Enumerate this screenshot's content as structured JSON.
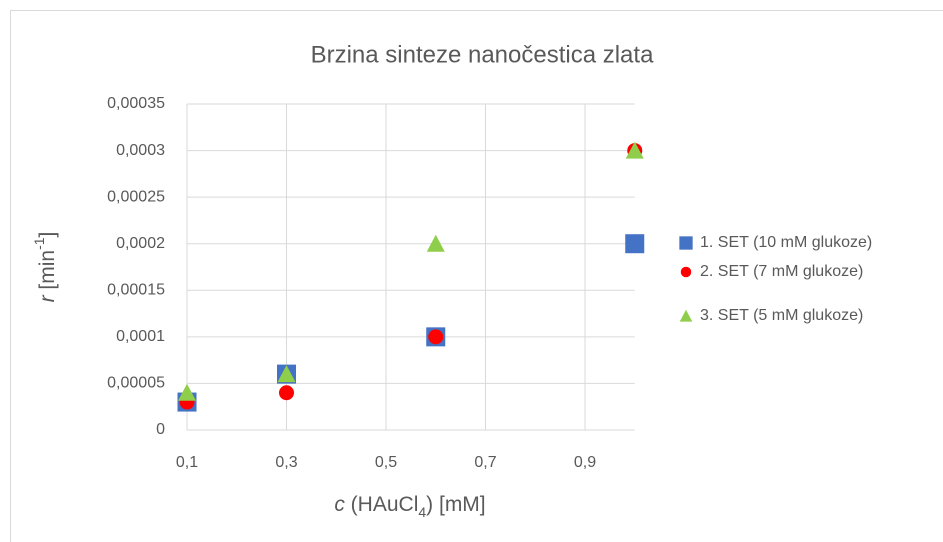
{
  "chart_data": {
    "type": "scatter",
    "title": "Brzina sinteze nanočestica zlata",
    "x_label": [
      "c",
      " (HAuCl",
      "4",
      ") [mM]"
    ],
    "y_label": [
      "r",
      " [min",
      "-1",
      "]"
    ],
    "x": [
      0.1,
      0.3,
      0.6,
      1.0
    ],
    "series": [
      {
        "name": "1. SET (10 mM glukoze)",
        "color": "#4472c4",
        "marker": "square",
        "values": [
          3e-05,
          6e-05,
          0.0001,
          0.0002
        ]
      },
      {
        "name": "2. SET (7 mM glukoze)",
        "color": "#ff0000",
        "marker": "circle",
        "values": [
          3e-05,
          4e-05,
          0.0001,
          0.0003
        ]
      },
      {
        "name": "3. SET (5 mM glukoze)",
        "color": "#8fce4a",
        "marker": "triangle",
        "values": [
          4e-05,
          6e-05,
          0.0002,
          0.0003
        ]
      }
    ],
    "xlim": [
      0.1,
      1.0
    ],
    "xticks": [
      {
        "value": 0.1,
        "label": "0,1"
      },
      {
        "value": 0.3,
        "label": "0,3"
      },
      {
        "value": 0.5,
        "label": "0,5"
      },
      {
        "value": 0.7,
        "label": "0,7"
      },
      {
        "value": 0.9,
        "label": "0,9"
      }
    ],
    "ylim": [
      0,
      0.00035
    ],
    "yticks": [
      0,
      {
        "value": 5e-05,
        "label": "0,00005"
      },
      {
        "value": 0.0001,
        "label": "0,0001"
      },
      {
        "value": 0.00015,
        "label": "0,00015"
      },
      {
        "value": 0.0002,
        "label": "0,0002"
      },
      {
        "value": 0.00025,
        "label": "0,00025"
      },
      {
        "value": 0.0003,
        "label": "0,0003"
      },
      {
        "value": 0.00035,
        "label": "0,00035"
      }
    ],
    "grid": true,
    "legend": "right"
  }
}
